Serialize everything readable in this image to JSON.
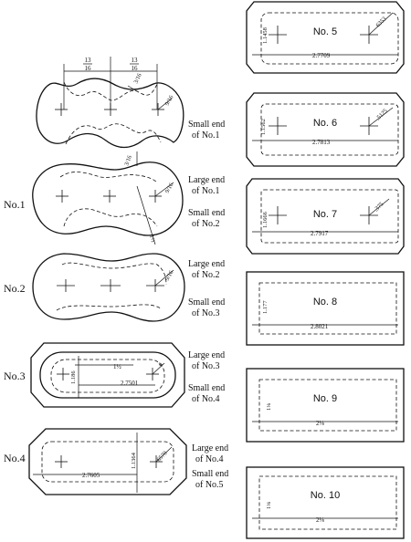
{
  "left": {
    "fig_a": {
      "dim_left_num": "13",
      "dim_left_den": "16",
      "dim_right_num": "13",
      "dim_right_den": "16",
      "dim_radius": "3/16",
      "dim_side": "9/16",
      "label_1": "Small end",
      "label_2": "of No.1"
    },
    "fig_b": {
      "stage": "No.1",
      "dim_top": "3/16",
      "dim_side": "9/16",
      "dim_diag": "1½",
      "label_1": "Large end",
      "label_2": "of No.1",
      "label_3": "Small end",
      "label_4": "of No.2"
    },
    "fig_c": {
      "stage": "No.2",
      "dim_side": "9/16",
      "label_1": "Large end",
      "label_2": "of No.2",
      "label_3": "Small end",
      "label_4": "of No.3"
    },
    "fig_d": {
      "stage": "No.3",
      "dim_width": "2.7501",
      "dim_height": "1.186",
      "dim_upper": "1½",
      "dim_corner": "6",
      "label_1": "Large end",
      "label_2": "of No.3",
      "label_3": "Small end",
      "label_4": "of No.4"
    },
    "fig_e": {
      "stage": "No.4",
      "dim_width": "2.7605",
      "dim_height": "1.1364",
      "dim_corner": "6570",
      "label_1": "Large end",
      "label_2": "of No.4",
      "label_3": "Small end",
      "label_4": "of No.5"
    }
  },
  "right": {
    "no5": {
      "title": "No. 5",
      "height": "1.1458",
      "width": "2.7709",
      "corner": "6353"
    },
    "no6": {
      "title": "No. 6",
      "height": "1.1562",
      "width": "2.7813",
      "corner": ".5125"
    },
    "no7": {
      "title": "No. 7",
      "height": "1.1666",
      "width": "2.7917",
      "corner": ".375"
    },
    "no8": {
      "title": "No. 8",
      "height": "1.177",
      "width": "2.8021"
    },
    "no9": {
      "title": "No. 9",
      "height": "1⅛",
      "width": "2⅛"
    },
    "no10": {
      "title": "No. 10",
      "height": "1⅛",
      "width": "2⅛"
    }
  }
}
